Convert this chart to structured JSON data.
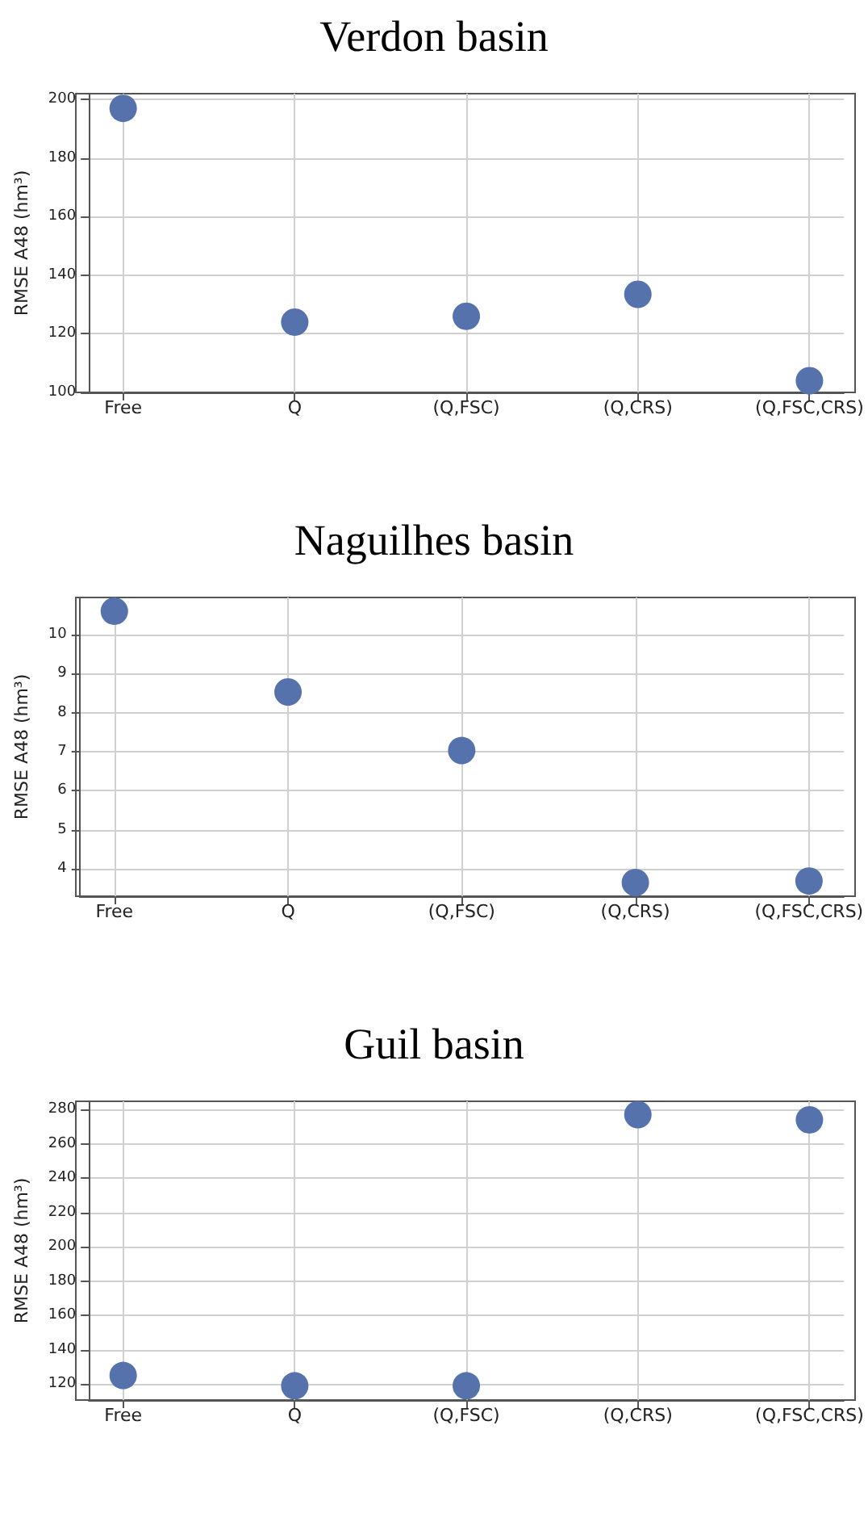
{
  "chart_data": [
    {
      "type": "scatter",
      "title": "Verdon basin",
      "ylabel": "RMSE A48 (hm³)",
      "categories": [
        "Free",
        "Q",
        "(Q,FSC)",
        "(Q,CRS)",
        "(Q,FSC,CRS)"
      ],
      "series": [
        {
          "color": "#5572ad",
          "values": [
            197,
            124,
            126,
            133.5,
            104
          ]
        }
      ],
      "ylim": [
        100,
        202
      ],
      "yticks": [
        100,
        120,
        140,
        160,
        180,
        200
      ],
      "grid": true,
      "marker": "circle"
    },
    {
      "type": "scatter",
      "title": "Naguilhes basin",
      "ylabel": "RMSE A48 (hm³)",
      "categories": [
        "Free",
        "Q",
        "(Q,FSC)",
        "(Q,CRS)",
        "(Q,FSC,CRS)"
      ],
      "series": [
        {
          "color": "#5572ad",
          "values": [
            10.6,
            8.53,
            7.03,
            3.65,
            3.69
          ]
        }
      ],
      "ylim": [
        3.3,
        10.95
      ],
      "yticks": [
        4,
        5,
        6,
        7,
        8,
        9,
        10
      ],
      "grid": true,
      "marker": "circle"
    },
    {
      "type": "scatter",
      "title": "Guil basin",
      "ylabel": "RMSE A48 (hm³)",
      "categories": [
        "Free",
        "Q",
        "(Q,FSC)",
        "(Q,CRS)",
        "(Q,FSC,CRS)"
      ],
      "series": [
        {
          "color": "#5572ad",
          "values": [
            125,
            119,
            119,
            277,
            274
          ]
        }
      ],
      "ylim": [
        110.7,
        284.8
      ],
      "yticks": [
        120,
        140,
        160,
        180,
        200,
        220,
        240,
        260,
        280
      ],
      "grid": true,
      "marker": "circle"
    }
  ]
}
